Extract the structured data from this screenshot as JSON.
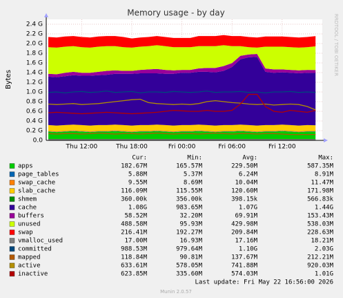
{
  "chart_data": {
    "type": "munin-area",
    "title": "Memory usage - by day",
    "ylabel": "Bytes",
    "watermark": "RRDTOOL / TOBI OETIKER",
    "footer": "Munin 2.0.57",
    "last_update": "Last update: Fri May 22 16:56:00 2026",
    "legend_headers": [
      "Cur:",
      "Min:",
      "Avg:",
      "Max:"
    ],
    "grid": true,
    "ylim": [
      0,
      2.5
    ],
    "yticks": [
      {
        "value": 0,
        "label": "0.0"
      },
      {
        "value": 0.2,
        "label": "0.2 G"
      },
      {
        "value": 0.4,
        "label": "0.4 G"
      },
      {
        "value": 0.6,
        "label": "0.6 G"
      },
      {
        "value": 0.8,
        "label": "0.8 G"
      },
      {
        "value": 1.0,
        "label": "1.0 G"
      },
      {
        "value": 1.2,
        "label": "1.2 G"
      },
      {
        "value": 1.4,
        "label": "1.4 G"
      },
      {
        "value": 1.6,
        "label": "1.6 G"
      },
      {
        "value": 1.8,
        "label": "1.8 G"
      },
      {
        "value": 2.0,
        "label": "2.0 G"
      },
      {
        "value": 2.2,
        "label": "2.2 G"
      },
      {
        "value": 2.4,
        "label": "2.4 G"
      }
    ],
    "categories": [
      null,
      null,
      null,
      null,
      "Thu 12:00",
      null,
      null,
      null,
      null,
      null,
      "Thu 18:00",
      null,
      null,
      null,
      null,
      null,
      "Fri 00:00",
      null,
      null,
      null,
      null,
      null,
      "Fri 06:00",
      null,
      null,
      null,
      null,
      null,
      "Fri 12:00",
      null,
      null,
      null,
      null
    ],
    "series": [
      {
        "name": "apps",
        "color": "#00cc00",
        "style": "area",
        "cur": "182.67M",
        "min": "165.57M",
        "avg": "229.50M",
        "max": "587.35M",
        "values": [
          0.18,
          0.17,
          0.18,
          0.19,
          0.18,
          0.17,
          0.18,
          0.18,
          0.19,
          0.18,
          0.17,
          0.18,
          0.18,
          0.19,
          0.18,
          0.17,
          0.18,
          0.18,
          0.19,
          0.18,
          0.17,
          0.18,
          0.18,
          0.19,
          0.18,
          0.17,
          0.18,
          0.18,
          0.19,
          0.18,
          0.17,
          0.18,
          0.18
        ]
      },
      {
        "name": "page_tables",
        "color": "#0066b3",
        "style": "area",
        "cur": "5.88M",
        "min": "5.37M",
        "avg": "6.24M",
        "max": "8.91M",
        "values": [
          0.006,
          0.006,
          0.006,
          0.006,
          0.006,
          0.006,
          0.006,
          0.006,
          0.006,
          0.006,
          0.006,
          0.006,
          0.006,
          0.006,
          0.006,
          0.006,
          0.006,
          0.006,
          0.006,
          0.006,
          0.006,
          0.006,
          0.006,
          0.006,
          0.006,
          0.006,
          0.006,
          0.006,
          0.006,
          0.006,
          0.006,
          0.006,
          0.006
        ]
      },
      {
        "name": "swap_cache",
        "color": "#ff8000",
        "style": "area",
        "cur": "9.55M",
        "min": "8.69M",
        "avg": "10.04M",
        "max": "11.47M",
        "values": [
          0.01,
          0.01,
          0.01,
          0.01,
          0.01,
          0.01,
          0.01,
          0.01,
          0.01,
          0.01,
          0.01,
          0.01,
          0.01,
          0.01,
          0.01,
          0.01,
          0.01,
          0.01,
          0.01,
          0.01,
          0.01,
          0.01,
          0.01,
          0.01,
          0.01,
          0.01,
          0.01,
          0.01,
          0.01,
          0.01,
          0.01,
          0.01,
          0.01
        ]
      },
      {
        "name": "slab_cache",
        "color": "#ffcc00",
        "style": "area",
        "cur": "116.09M",
        "min": "115.55M",
        "avg": "120.60M",
        "max": "171.98M",
        "values": [
          0.12,
          0.12,
          0.12,
          0.12,
          0.12,
          0.12,
          0.12,
          0.12,
          0.12,
          0.12,
          0.12,
          0.12,
          0.12,
          0.12,
          0.12,
          0.12,
          0.12,
          0.12,
          0.12,
          0.12,
          0.12,
          0.12,
          0.12,
          0.12,
          0.12,
          0.12,
          0.12,
          0.12,
          0.12,
          0.12,
          0.12,
          0.12,
          0.116
        ]
      },
      {
        "name": "shmem",
        "color": "#008f00",
        "style": "area",
        "cur": "360.00k",
        "min": "356.00k",
        "avg": "398.15k",
        "max": "566.83k",
        "values": [
          0.0004,
          0.0004,
          0.0004,
          0.0004,
          0.0004,
          0.0004,
          0.0004,
          0.0004,
          0.0004,
          0.0004,
          0.0004,
          0.0004,
          0.0004,
          0.0004,
          0.0004,
          0.0004,
          0.0004,
          0.0004,
          0.0004,
          0.0004,
          0.0004,
          0.0004,
          0.0004,
          0.0004,
          0.0004,
          0.0004,
          0.0004,
          0.0004,
          0.0004,
          0.0004,
          0.0004,
          0.0004,
          0.0004
        ]
      },
      {
        "name": "cache",
        "color": "#330099",
        "style": "area",
        "cur": "1.08G",
        "min": "983.65M",
        "avg": "1.07G",
        "max": "1.44G",
        "values": [
          1.0,
          1.0,
          1.01,
          1.02,
          1.02,
          1.03,
          1.03,
          1.04,
          1.05,
          1.06,
          1.07,
          1.07,
          1.07,
          1.06,
          1.06,
          1.07,
          1.08,
          1.08,
          1.09,
          1.1,
          1.1,
          1.12,
          1.2,
          1.35,
          1.4,
          1.42,
          1.1,
          1.08,
          1.08,
          1.08,
          1.08,
          1.08,
          1.08
        ]
      },
      {
        "name": "buffers",
        "color": "#990099",
        "style": "area",
        "cur": "58.52M",
        "min": "32.20M",
        "avg": "69.91M",
        "max": "153.43M",
        "values": [
          0.06,
          0.06,
          0.07,
          0.07,
          0.06,
          0.06,
          0.07,
          0.08,
          0.07,
          0.06,
          0.06,
          0.07,
          0.08,
          0.09,
          0.08,
          0.07,
          0.06,
          0.06,
          0.07,
          0.08,
          0.09,
          0.1,
          0.08,
          0.07,
          0.06,
          0.06,
          0.07,
          0.07,
          0.06,
          0.06,
          0.06,
          0.06,
          0.06
        ]
      },
      {
        "name": "unused",
        "color": "#ccff00",
        "style": "area",
        "cur": "488.58M",
        "min": "95.93M",
        "avg": "429.98M",
        "max": "538.03M",
        "values": [
          0.55,
          0.55,
          0.54,
          0.53,
          0.53,
          0.52,
          0.52,
          0.51,
          0.5,
          0.49,
          0.48,
          0.48,
          0.48,
          0.49,
          0.49,
          0.48,
          0.47,
          0.47,
          0.46,
          0.45,
          0.45,
          0.43,
          0.35,
          0.2,
          0.15,
          0.13,
          0.45,
          0.47,
          0.47,
          0.47,
          0.47,
          0.47,
          0.49
        ]
      },
      {
        "name": "swap",
        "color": "#ff0000",
        "style": "area",
        "cur": "216.41M",
        "min": "192.27M",
        "avg": "209.84M",
        "max": "228.63M",
        "values": [
          0.21,
          0.21,
          0.21,
          0.21,
          0.21,
          0.21,
          0.21,
          0.21,
          0.21,
          0.21,
          0.19,
          0.19,
          0.19,
          0.19,
          0.19,
          0.19,
          0.19,
          0.19,
          0.21,
          0.21,
          0.21,
          0.21,
          0.21,
          0.21,
          0.21,
          0.21,
          0.21,
          0.21,
          0.21,
          0.21,
          0.21,
          0.21,
          0.21
        ]
      },
      {
        "name": "vmalloc_used",
        "color": "#808080",
        "style": "line",
        "cur": "17.00M",
        "min": "16.93M",
        "avg": "17.16M",
        "max": "18.21M",
        "values": [
          0.017,
          0.017,
          0.017,
          0.017,
          0.017,
          0.017,
          0.017,
          0.017,
          0.017,
          0.017,
          0.017,
          0.017,
          0.017,
          0.017,
          0.017,
          0.017,
          0.017,
          0.017,
          0.017,
          0.017,
          0.017,
          0.017,
          0.017,
          0.017,
          0.017,
          0.017,
          0.017,
          0.017,
          0.017,
          0.017,
          0.017,
          0.017,
          0.017
        ]
      },
      {
        "name": "committed",
        "color": "#00487d",
        "style": "line",
        "cur": "988.53M",
        "min": "979.64M",
        "avg": "1.10G",
        "max": "2.03G",
        "values": [
          0.99,
          1.0,
          0.98,
          1.0,
          1.01,
          0.99,
          1.0,
          1.02,
          0.99,
          1.0,
          1.01,
          0.98,
          1.0,
          1.0,
          0.99,
          1.01,
          1.0,
          0.99,
          1.0,
          1.02,
          0.99,
          1.0,
          1.0,
          1.01,
          0.99,
          1.0,
          0.98,
          1.0,
          1.0,
          1.01,
          0.99,
          1.0,
          0.99
        ]
      },
      {
        "name": "mapped",
        "color": "#b35a00",
        "style": "line",
        "cur": "118.84M",
        "min": "90.81M",
        "avg": "137.67M",
        "max": "212.21M",
        "values": [
          0.14,
          0.13,
          0.14,
          0.14,
          0.13,
          0.14,
          0.15,
          0.14,
          0.13,
          0.14,
          0.14,
          0.13,
          0.14,
          0.15,
          0.14,
          0.13,
          0.14,
          0.14,
          0.13,
          0.14,
          0.15,
          0.14,
          0.13,
          0.14,
          0.14,
          0.13,
          0.14,
          0.14,
          0.13,
          0.12,
          0.12,
          0.12,
          0.12
        ]
      },
      {
        "name": "active",
        "color": "#b38f00",
        "style": "line",
        "cur": "633.61M",
        "min": "578.05M",
        "avg": "741.88M",
        "max": "920.03M",
        "values": [
          0.75,
          0.74,
          0.75,
          0.76,
          0.74,
          0.75,
          0.76,
          0.78,
          0.8,
          0.82,
          0.84,
          0.85,
          0.78,
          0.76,
          0.75,
          0.74,
          0.75,
          0.74,
          0.76,
          0.8,
          0.82,
          0.8,
          0.78,
          0.77,
          0.75,
          0.74,
          0.75,
          0.73,
          0.74,
          0.75,
          0.74,
          0.7,
          0.63
        ]
      },
      {
        "name": "inactive",
        "color": "#b30000",
        "style": "line",
        "cur": "623.85M",
        "min": "335.60M",
        "avg": "574.03M",
        "max": "1.01G",
        "values": [
          0.57,
          0.58,
          0.57,
          0.56,
          0.55,
          0.56,
          0.57,
          0.58,
          0.57,
          0.56,
          0.55,
          0.56,
          0.57,
          0.58,
          0.6,
          0.62,
          0.61,
          0.6,
          0.6,
          0.62,
          0.6,
          0.6,
          0.62,
          0.75,
          0.95,
          0.95,
          0.7,
          0.6,
          0.58,
          0.62,
          0.6,
          0.58,
          0.62
        ]
      }
    ]
  }
}
